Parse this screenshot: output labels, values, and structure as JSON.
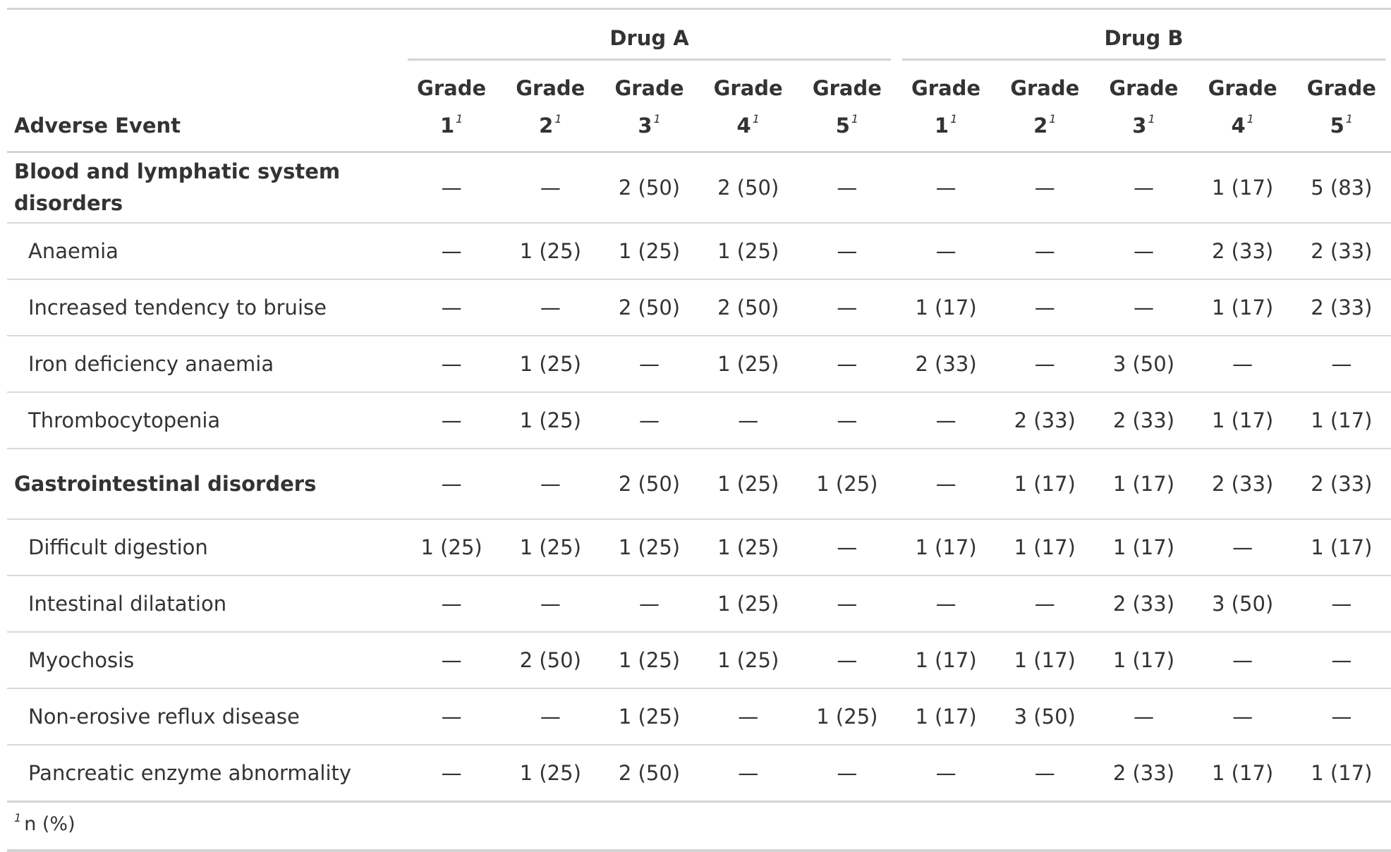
{
  "table": {
    "label_header": "Adverse Event",
    "spanners": [
      {
        "label": "Drug A",
        "colspan": 5
      },
      {
        "label": "Drug B",
        "colspan": 5
      }
    ],
    "grade_headers": [
      {
        "word": "Grade",
        "num": "1",
        "mark": "1"
      },
      {
        "word": "Grade",
        "num": "2",
        "mark": "1"
      },
      {
        "word": "Grade",
        "num": "3",
        "mark": "1"
      },
      {
        "word": "Grade",
        "num": "4",
        "mark": "1"
      },
      {
        "word": "Grade",
        "num": "5",
        "mark": "1"
      },
      {
        "word": "Grade",
        "num": "1",
        "mark": "1"
      },
      {
        "word": "Grade",
        "num": "2",
        "mark": "1"
      },
      {
        "word": "Grade",
        "num": "3",
        "mark": "1"
      },
      {
        "word": "Grade",
        "num": "4",
        "mark": "1"
      },
      {
        "word": "Grade",
        "num": "5",
        "mark": "1"
      }
    ],
    "rows": [
      {
        "type": "group",
        "label": "Blood and lymphatic system disorders",
        "cells": [
          "—",
          "—",
          "2 (50)",
          "2 (50)",
          "—",
          "—",
          "—",
          "—",
          "1 (17)",
          "5 (83)"
        ]
      },
      {
        "type": "item",
        "label": "Anaemia",
        "cells": [
          "—",
          "1 (25)",
          "1 (25)",
          "1 (25)",
          "—",
          "—",
          "—",
          "—",
          "2 (33)",
          "2 (33)"
        ]
      },
      {
        "type": "item",
        "label": "Increased tendency to bruise",
        "cells": [
          "—",
          "—",
          "2 (50)",
          "2 (50)",
          "—",
          "1 (17)",
          "—",
          "—",
          "1 (17)",
          "2 (33)"
        ]
      },
      {
        "type": "item",
        "label": "Iron deficiency anaemia",
        "cells": [
          "—",
          "1 (25)",
          "—",
          "1 (25)",
          "—",
          "2 (33)",
          "—",
          "3 (50)",
          "—",
          "—"
        ]
      },
      {
        "type": "item",
        "label": "Thrombocytopenia",
        "cells": [
          "—",
          "1 (25)",
          "—",
          "—",
          "—",
          "—",
          "2 (33)",
          "2 (33)",
          "1 (17)",
          "1 (17)"
        ]
      },
      {
        "type": "group",
        "label": "Gastrointestinal disorders",
        "cells": [
          "—",
          "—",
          "2 (50)",
          "1 (25)",
          "1 (25)",
          "—",
          "1 (17)",
          "1 (17)",
          "2 (33)",
          "2 (33)"
        ]
      },
      {
        "type": "item",
        "label": "Difficult digestion",
        "cells": [
          "1 (25)",
          "1 (25)",
          "1 (25)",
          "1 (25)",
          "—",
          "1 (17)",
          "1 (17)",
          "1 (17)",
          "—",
          "1 (17)"
        ]
      },
      {
        "type": "item",
        "label": "Intestinal dilatation",
        "cells": [
          "—",
          "—",
          "—",
          "1 (25)",
          "—",
          "—",
          "—",
          "2 (33)",
          "3 (50)",
          "—"
        ]
      },
      {
        "type": "item",
        "label": "Myochosis",
        "cells": [
          "—",
          "2 (50)",
          "1 (25)",
          "1 (25)",
          "—",
          "1 (17)",
          "1 (17)",
          "1 (17)",
          "—",
          "—"
        ]
      },
      {
        "type": "item",
        "label": "Non-erosive reflux disease",
        "cells": [
          "—",
          "—",
          "1 (25)",
          "—",
          "1 (25)",
          "1 (17)",
          "3 (50)",
          "—",
          "—",
          "—"
        ]
      },
      {
        "type": "item",
        "label": "Pancreatic enzyme abnormality",
        "cells": [
          "—",
          "1 (25)",
          "2 (50)",
          "—",
          "—",
          "—",
          "—",
          "2 (33)",
          "1 (17)",
          "1 (17)"
        ]
      }
    ],
    "footnote": {
      "mark": "1",
      "text": "n (%)"
    }
  }
}
